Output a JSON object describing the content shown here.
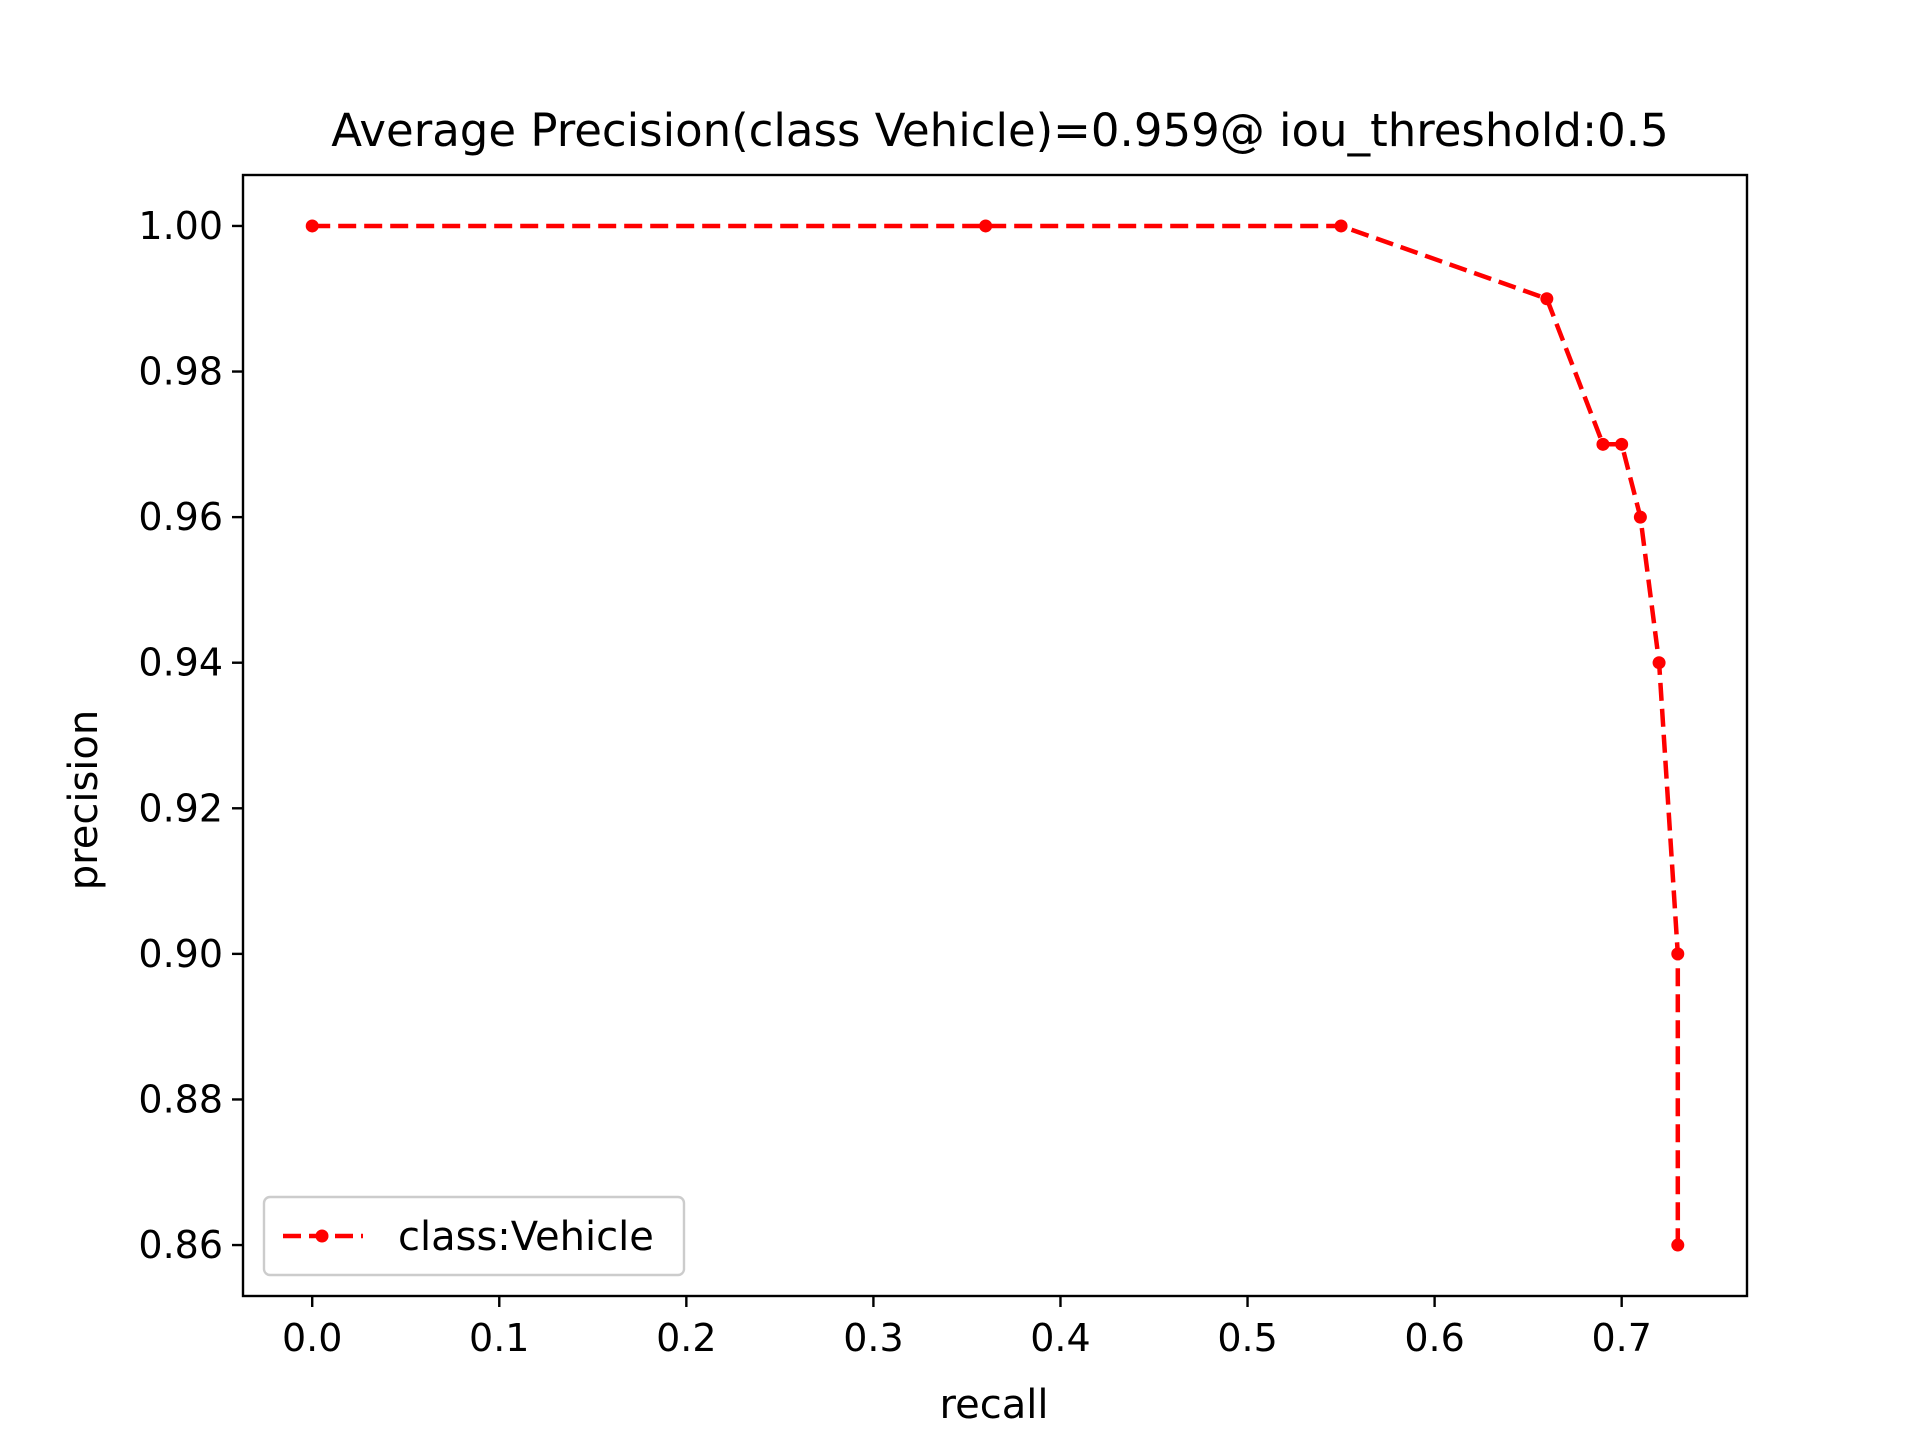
{
  "chart_data": {
    "type": "line",
    "title": "Average Precision(class Vehicle)=0.959@ iou_threshold:0.5",
    "xlabel": "recall",
    "ylabel": "precision",
    "xlim": [
      -0.037,
      0.767
    ],
    "ylim": [
      0.853,
      1.007
    ],
    "xticks": [
      0.0,
      0.1,
      0.2,
      0.3,
      0.4,
      0.5,
      0.6,
      0.7
    ],
    "xtick_labels": [
      "0.0",
      "0.1",
      "0.2",
      "0.3",
      "0.4",
      "0.5",
      "0.6",
      "0.7"
    ],
    "yticks": [
      0.86,
      0.88,
      0.9,
      0.92,
      0.94,
      0.96,
      0.98,
      1.0
    ],
    "ytick_labels": [
      "0.86",
      "0.88",
      "0.90",
      "0.92",
      "0.94",
      "0.96",
      "0.98",
      "1.00"
    ],
    "grid": false,
    "legend_position": "lower-left",
    "series": [
      {
        "name": "class:Vehicle",
        "color": "#ff0000",
        "line_style": "dashed",
        "marker": "dot",
        "x": [
          0.0,
          0.36,
          0.55,
          0.66,
          0.69,
          0.7,
          0.71,
          0.72,
          0.73,
          0.73
        ],
        "y": [
          1.0,
          1.0,
          1.0,
          0.99,
          0.97,
          0.97,
          0.96,
          0.94,
          0.9,
          0.86
        ]
      }
    ]
  }
}
